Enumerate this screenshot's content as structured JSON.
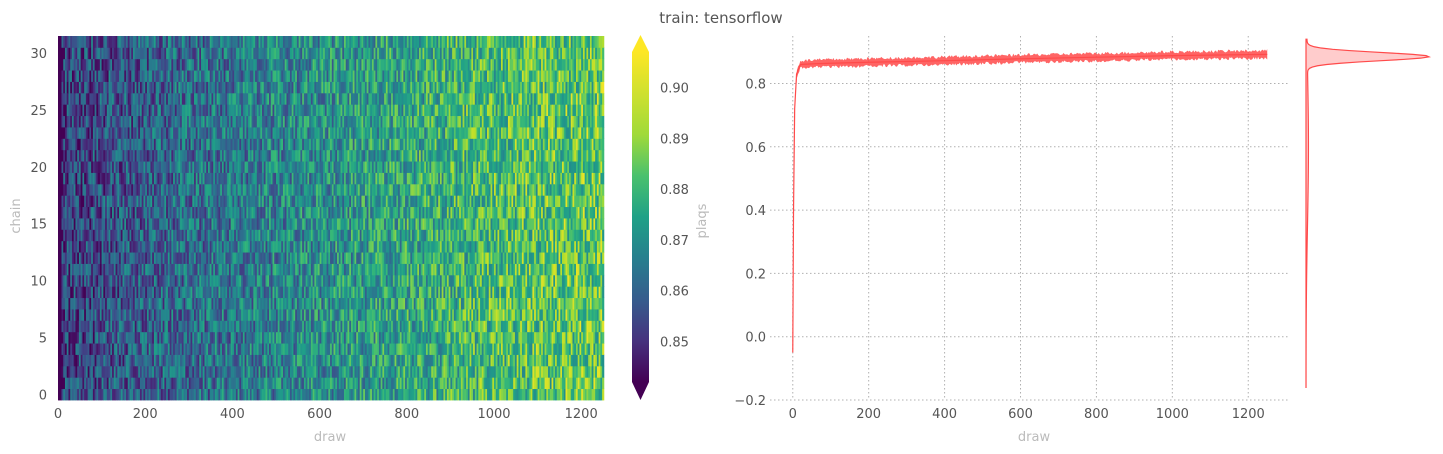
{
  "title": "train: tensorflow",
  "colors": {
    "trace": "#ff4a4a",
    "kde_fill": "#ffcccc",
    "text": "#555555",
    "label": "#bbbbbb"
  },
  "chart_data": [
    {
      "type": "heatmap",
      "xlabel": "draw",
      "ylabel": "chain",
      "xlim": [
        0,
        1250
      ],
      "ylim": [
        0,
        32
      ],
      "xticks": [
        "0",
        "200",
        "400",
        "600",
        "800",
        "1000",
        "1200"
      ],
      "yticks": [
        "0",
        "5",
        "10",
        "15",
        "20",
        "25",
        "30"
      ],
      "n_chains": 32,
      "n_draws": 1250,
      "colormap": "viridis",
      "value_trend": {
        "draw": [
          0,
          10,
          200,
          400,
          600,
          800,
          1000,
          1250
        ],
        "plaqs": [
          0.84,
          0.855,
          0.862,
          0.868,
          0.874,
          0.88,
          0.887,
          0.89
        ]
      },
      "colorbar": {
        "label": "plaqs",
        "min": 0.842,
        "max": 0.907,
        "ticks": [
          "0.85",
          "0.86",
          "0.87",
          "0.88",
          "0.89",
          "0.90"
        ],
        "extend": "both"
      }
    },
    {
      "type": "line",
      "xlabel": "draw",
      "ylabel": "",
      "xlim": [
        -60,
        1310
      ],
      "ylim": [
        -0.2,
        0.95
      ],
      "xticks": [
        "0",
        "200",
        "400",
        "600",
        "800",
        "1000",
        "1200"
      ],
      "yticks": [
        "−0.2",
        "0.0",
        "0.2",
        "0.4",
        "0.6",
        "0.8"
      ],
      "grid": true,
      "series": [
        {
          "x": [
            0,
            2,
            5,
            10,
            20,
            50,
            100,
            200,
            400,
            600,
            800,
            1000,
            1250
          ],
          "y": [
            -0.05,
            0.4,
            0.72,
            0.83,
            0.86,
            0.862,
            0.864,
            0.867,
            0.872,
            0.878,
            0.883,
            0.888,
            0.892
          ],
          "band": 0.012
        }
      ],
      "kde": {
        "peak": 0.885,
        "width": 0.013,
        "range": [
          -0.16,
          0.94
        ]
      }
    }
  ]
}
